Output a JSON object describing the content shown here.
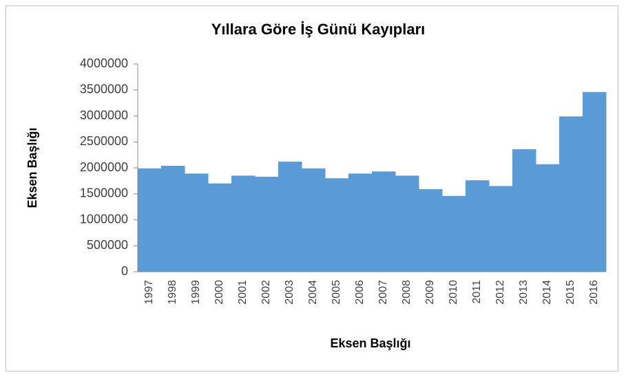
{
  "chart_data": {
    "type": "bar",
    "title": "Yıllara Göre İş Günü Kayıpları",
    "x_label": "Eksen Başlığı",
    "y_label": "Eksen Başlığı",
    "categories": [
      "1997",
      "1998",
      "1999",
      "2000",
      "2001",
      "2002",
      "2003",
      "2004",
      "2005",
      "2006",
      "2007",
      "2008",
      "2009",
      "2010",
      "2011",
      "2012",
      "2013",
      "2014",
      "2015",
      "2016"
    ],
    "values": [
      1990000,
      2040000,
      1890000,
      1700000,
      1850000,
      1830000,
      2120000,
      1990000,
      1800000,
      1890000,
      1930000,
      1850000,
      1590000,
      1460000,
      1760000,
      1650000,
      2360000,
      2070000,
      2990000,
      3460000
    ],
    "color": "#5b9bd5",
    "ylim": [
      0,
      4000000
    ],
    "yticks": [
      0,
      500000,
      1000000,
      1500000,
      2000000,
      2500000,
      3000000,
      3500000,
      4000000
    ]
  }
}
